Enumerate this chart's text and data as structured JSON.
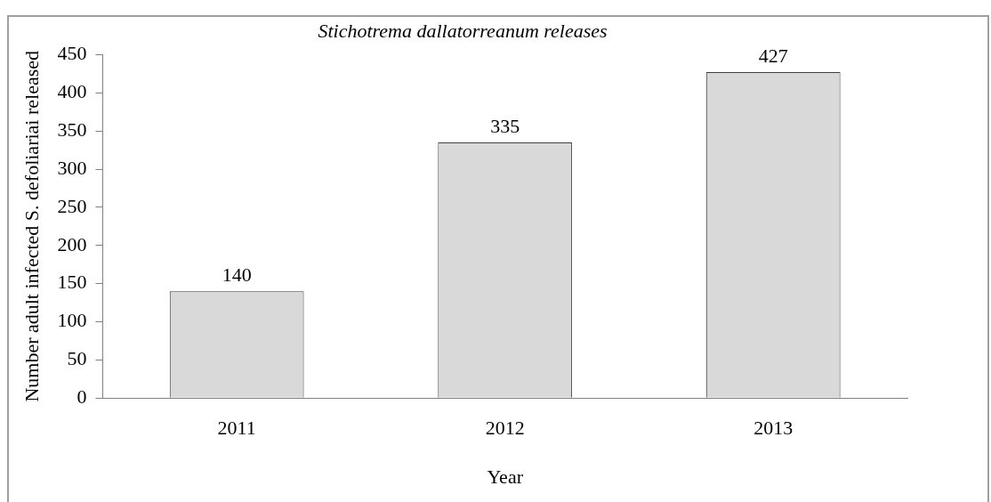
{
  "chart_data": {
    "type": "bar",
    "title": "Stichotrema dallatorreanum releases",
    "xlabel": "Year",
    "ylabel": "Number adult infected S. defoliariai released",
    "categories": [
      "2011",
      "2012",
      "2013"
    ],
    "values": [
      140,
      335,
      427
    ],
    "color": "#d9d9d9",
    "ylim": [
      0,
      450
    ],
    "yticks": [
      0,
      50,
      100,
      150,
      200,
      250,
      300,
      350,
      400,
      450
    ],
    "grid": false,
    "legend": false,
    "data_labels": true
  }
}
